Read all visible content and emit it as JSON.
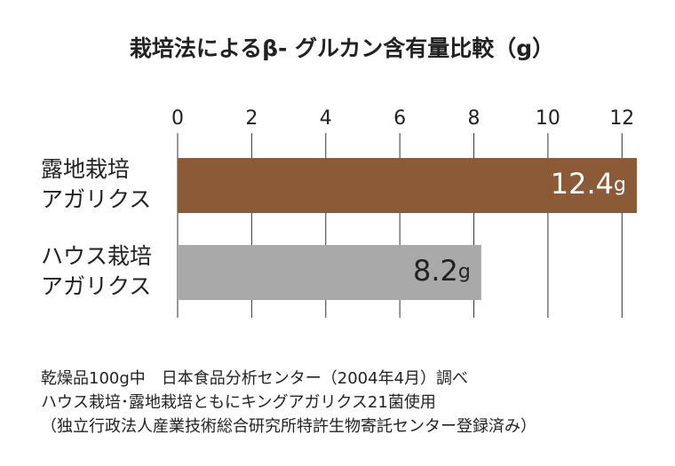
{
  "chart_data": {
    "type": "hbar",
    "title": "栽培法によるβ- グルカン含有量比較（g）",
    "categories": [
      "露地栽培\nアガリクス",
      "ハウス栽培\nアガリクス"
    ],
    "values": [
      12.4,
      8.2
    ],
    "value_labels": [
      "12.4g",
      "8.2g"
    ],
    "colors": [
      "#8b5a36",
      "#a9a9a9"
    ],
    "xlim": [
      0,
      12.4
    ],
    "xticks": [
      0,
      2,
      4,
      6,
      8,
      10,
      12
    ],
    "grid": true,
    "footnote": [
      "乾燥品100g中　日本食品分析センター（2004年4月）調べ",
      "ハウス栽培･露地栽培ともにキングアガリクス21菌使用",
      "（独立行政法人産業技術総合研究所特許生物寄託センター登録済み）"
    ]
  }
}
